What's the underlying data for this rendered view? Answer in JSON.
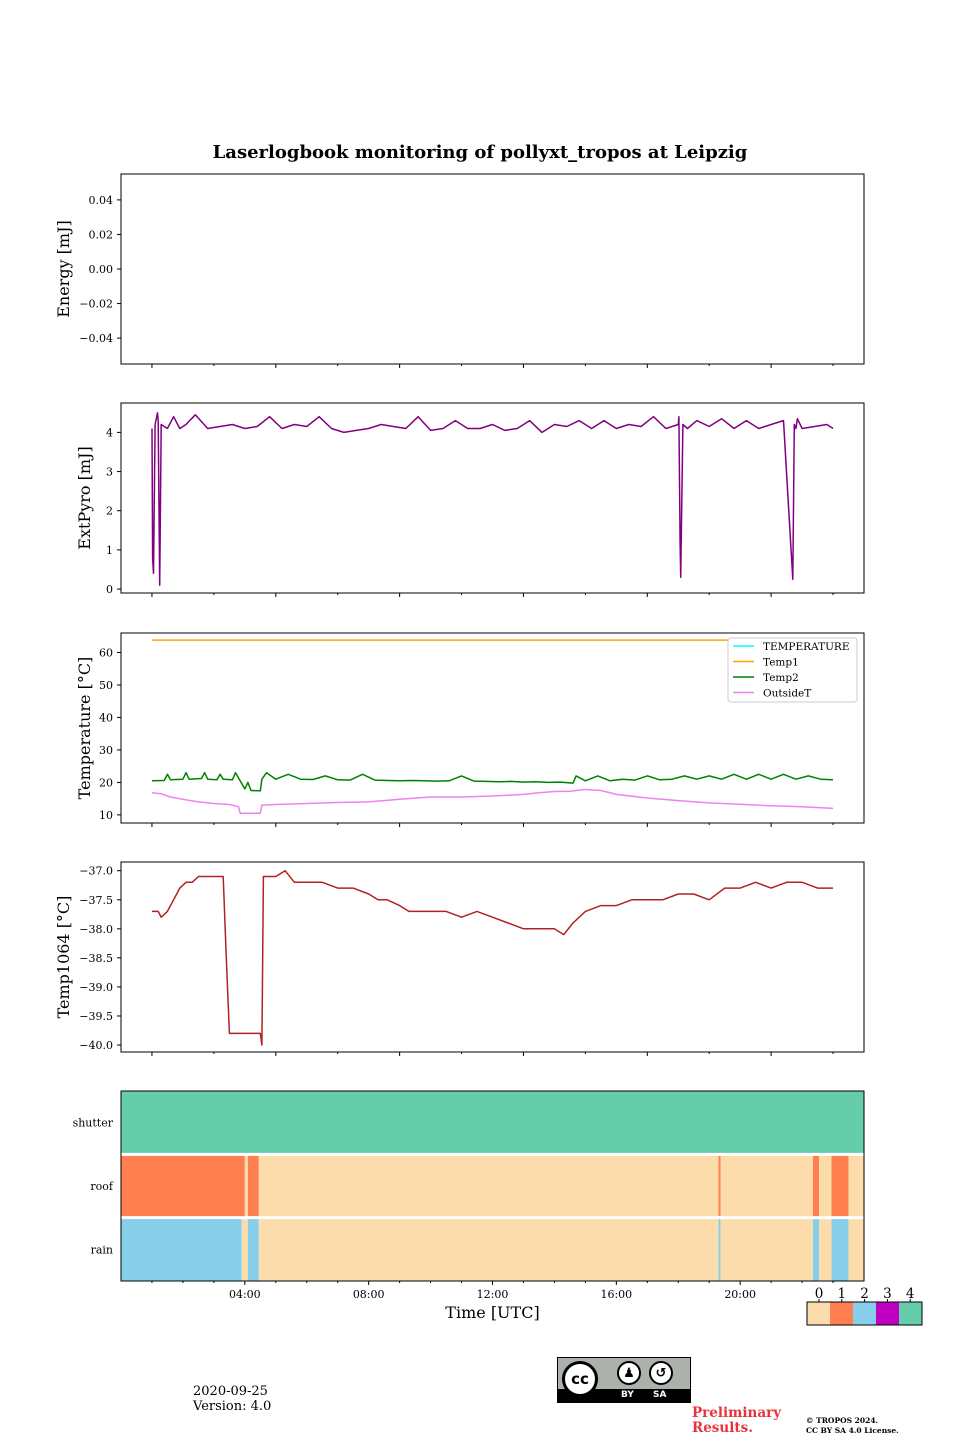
{
  "figure": {
    "title": "Laserlogbook monitoring of pollyxt_tropos at Leipzig",
    "date": "2020-09-25",
    "version": "Version: 4.0",
    "preliminary": [
      "Preliminary",
      "Results."
    ],
    "copyright": [
      "© TROPOS 2024.",
      "CC BY SA 4.0 License."
    ],
    "license_badge": {
      "by": "BY",
      "sa": "SA",
      "cc": "cc"
    }
  },
  "colors": {
    "energy": "#800080",
    "temperature": "#00ffff",
    "temp1": "#ffa500",
    "temp2": "#008000",
    "outsideT": "#ee82ee",
    "temp1064": "#b22222",
    "status": [
      "#fddcab",
      "#ff7f50",
      "#87ceeb",
      "#c000c0",
      "#66cdaa"
    ]
  },
  "chart_data": [
    {
      "type": "line",
      "id": "energy",
      "title": "",
      "ylabel": "Energy [mJ]",
      "xlim": [
        0,
        24
      ],
      "ylim": [
        -0.055,
        0.055
      ],
      "yticks": [
        0.04,
        0.02,
        0.0,
        -0.02,
        -0.04
      ],
      "ytick_labels": [
        "0.04",
        "0.02",
        "0.00",
        "−0.02",
        "−0.04"
      ],
      "series": []
    },
    {
      "type": "line",
      "id": "extpyro",
      "ylabel": "ExtPyro [mJ]",
      "xlim": [
        0,
        24
      ],
      "ylim": [
        -0.1,
        4.75
      ],
      "yticks": [
        0,
        1,
        2,
        3,
        4
      ],
      "ytick_labels": [
        "0",
        "1",
        "2",
        "3",
        "4"
      ],
      "series": [
        {
          "name": "ExtPyro",
          "color": "#800080",
          "x": [
            1.0,
            1.02,
            1.05,
            1.1,
            1.18,
            1.2,
            1.25,
            1.3,
            1.5,
            1.7,
            1.9,
            2.1,
            2.4,
            2.8,
            3.2,
            3.6,
            4.0,
            4.4,
            4.8,
            5.2,
            5.6,
            6.0,
            6.4,
            6.8,
            7.2,
            7.6,
            8.0,
            8.4,
            8.8,
            9.2,
            9.6,
            10.0,
            10.4,
            10.8,
            11.2,
            11.6,
            12.0,
            12.4,
            12.8,
            13.2,
            13.6,
            14.0,
            14.4,
            14.8,
            15.2,
            15.6,
            16.0,
            16.4,
            16.8,
            17.2,
            17.6,
            18.0,
            18.02,
            18.06,
            18.08,
            18.15,
            18.3,
            18.6,
            19.0,
            19.4,
            19.8,
            20.2,
            20.6,
            21.0,
            21.4,
            21.7,
            21.75,
            21.8,
            21.85,
            22.0,
            22.4,
            22.8,
            23.0
          ],
          "y": [
            4.1,
            0.8,
            0.4,
            4.2,
            4.5,
            4.3,
            0.1,
            4.2,
            4.1,
            4.4,
            4.1,
            4.2,
            4.45,
            4.1,
            4.15,
            4.2,
            4.1,
            4.15,
            4.4,
            4.1,
            4.2,
            4.15,
            4.4,
            4.1,
            4.0,
            4.05,
            4.1,
            4.2,
            4.15,
            4.1,
            4.4,
            4.05,
            4.1,
            4.3,
            4.1,
            4.1,
            4.2,
            4.05,
            4.1,
            4.3,
            4.0,
            4.2,
            4.15,
            4.3,
            4.1,
            4.3,
            4.1,
            4.2,
            4.15,
            4.4,
            4.1,
            4.2,
            4.4,
            1.2,
            0.3,
            4.2,
            4.1,
            4.3,
            4.15,
            4.35,
            4.1,
            4.3,
            4.1,
            4.2,
            4.3,
            0.25,
            4.2,
            4.1,
            4.35,
            4.1,
            4.15,
            4.2,
            4.1
          ]
        }
      ]
    },
    {
      "type": "line",
      "id": "temperature",
      "ylabel": "Temperature [°C]",
      "xlim": [
        0,
        24
      ],
      "ylim": [
        7.5,
        66
      ],
      "yticks": [
        10,
        20,
        30,
        40,
        50,
        60
      ],
      "ytick_labels": [
        "10",
        "20",
        "30",
        "40",
        "50",
        "60"
      ],
      "legend": {
        "placement": "top-right",
        "entries": [
          "TEMPERATURE",
          "Temp1",
          "Temp2",
          "OutsideT"
        ]
      },
      "series": [
        {
          "name": "TEMPERATURE",
          "color": "#00ffff",
          "x": [],
          "y": []
        },
        {
          "name": "Temp1",
          "color": "#ffa500",
          "x": [
            1.0,
            23.0
          ],
          "y": [
            63.8,
            63.8
          ]
        },
        {
          "name": "Temp2",
          "color": "#008000",
          "x": [
            1.0,
            1.4,
            1.5,
            1.6,
            2.0,
            2.1,
            2.2,
            2.6,
            2.7,
            2.8,
            3.1,
            3.2,
            3.3,
            3.6,
            3.7,
            4.0,
            4.1,
            4.2,
            4.5,
            4.55,
            4.7,
            5.0,
            5.4,
            5.8,
            6.2,
            6.6,
            7.0,
            7.4,
            7.8,
            8.2,
            8.6,
            9.0,
            9.4,
            9.8,
            10.2,
            10.6,
            11.0,
            11.4,
            11.8,
            12.2,
            12.6,
            13.0,
            13.4,
            13.8,
            14.2,
            14.6,
            14.7,
            15.0,
            15.4,
            15.8,
            16.2,
            16.6,
            17.0,
            17.4,
            17.8,
            18.2,
            18.6,
            19.0,
            19.4,
            19.8,
            20.2,
            20.6,
            21.0,
            21.4,
            21.8,
            22.2,
            22.6,
            23.0
          ],
          "y": [
            20.5,
            20.6,
            22.5,
            20.8,
            21.0,
            23.0,
            21.0,
            21.2,
            23.0,
            21.0,
            20.8,
            22.5,
            21.0,
            20.8,
            23.0,
            18.0,
            20.0,
            17.5,
            17.4,
            21.0,
            23.0,
            21.0,
            22.5,
            21.0,
            20.9,
            22.0,
            20.8,
            20.7,
            22.5,
            20.7,
            20.6,
            20.5,
            20.6,
            20.5,
            20.4,
            20.5,
            22.0,
            20.4,
            20.3,
            20.2,
            20.3,
            20.1,
            20.2,
            20.0,
            20.1,
            19.8,
            22.0,
            20.5,
            22.0,
            20.5,
            21.0,
            20.7,
            22.0,
            20.8,
            21.0,
            22.0,
            21.0,
            22.0,
            21.0,
            22.5,
            21.0,
            22.5,
            21.0,
            22.5,
            21.0,
            22.0,
            21.0,
            20.8
          ]
        },
        {
          "name": "OutsideT",
          "color": "#ee82ee",
          "x": [
            1.0,
            1.3,
            1.6,
            2.0,
            2.5,
            3.0,
            3.5,
            3.8,
            3.85,
            4.5,
            4.55,
            5.0,
            6.0,
            7.0,
            8.0,
            9.0,
            10.0,
            11.0,
            12.0,
            13.0,
            13.5,
            14.0,
            14.5,
            15.0,
            15.5,
            16.0,
            17.0,
            18.0,
            19.0,
            20.0,
            21.0,
            22.0,
            23.0
          ],
          "y": [
            16.8,
            16.5,
            15.5,
            14.8,
            14.0,
            13.5,
            13.2,
            12.5,
            10.5,
            10.5,
            13.0,
            13.2,
            13.5,
            13.8,
            14.0,
            14.8,
            15.5,
            15.5,
            15.8,
            16.3,
            16.8,
            17.2,
            17.3,
            17.8,
            17.5,
            16.3,
            15.2,
            14.4,
            13.7,
            13.3,
            12.8,
            12.5,
            12.0
          ]
        }
      ]
    },
    {
      "type": "line",
      "id": "temp1064",
      "ylabel": "Temp1064 [°C]",
      "xlim": [
        0,
        24
      ],
      "ylim": [
        -40.12,
        -36.85
      ],
      "yticks": [
        -37.0,
        -37.5,
        -38.0,
        -38.5,
        -39.0,
        -39.5,
        -40.0
      ],
      "ytick_labels": [
        "−37.0",
        "−37.5",
        "−38.0",
        "−38.5",
        "−39.0",
        "−39.5",
        "−40.0"
      ],
      "series": [
        {
          "name": "Temp1064",
          "color": "#b22222",
          "x": [
            1.0,
            1.2,
            1.3,
            1.5,
            1.7,
            1.8,
            1.9,
            2.1,
            2.3,
            2.5,
            2.7,
            3.3,
            3.4,
            3.5,
            3.6,
            4.5,
            4.55,
            4.6,
            5.0,
            5.3,
            5.6,
            6.0,
            6.5,
            7.0,
            7.5,
            8.0,
            8.3,
            8.6,
            9.0,
            9.3,
            9.5,
            10.0,
            10.5,
            11.0,
            11.5,
            12.0,
            12.5,
            13.0,
            13.5,
            14.0,
            14.3,
            14.6,
            15.0,
            15.5,
            16.0,
            16.5,
            17.0,
            17.5,
            18.0,
            18.5,
            19.0,
            19.5,
            20.0,
            20.5,
            21.0,
            21.5,
            22.0,
            22.5,
            23.0
          ],
          "y": [
            -37.7,
            -37.7,
            -37.8,
            -37.7,
            -37.5,
            -37.4,
            -37.3,
            -37.2,
            -37.2,
            -37.1,
            -37.1,
            -37.1,
            -38.5,
            -39.8,
            -39.8,
            -39.8,
            -40.0,
            -37.1,
            -37.1,
            -37.0,
            -37.2,
            -37.2,
            -37.2,
            -37.3,
            -37.3,
            -37.4,
            -37.5,
            -37.5,
            -37.6,
            -37.7,
            -37.7,
            -37.7,
            -37.7,
            -37.8,
            -37.7,
            -37.8,
            -37.9,
            -38.0,
            -38.0,
            -38.0,
            -38.1,
            -37.9,
            -37.7,
            -37.6,
            -37.6,
            -37.5,
            -37.5,
            -37.5,
            -37.4,
            -37.4,
            -37.5,
            -37.3,
            -37.3,
            -37.2,
            -37.3,
            -37.2,
            -37.2,
            -37.3,
            -37.3
          ]
        }
      ]
    },
    {
      "type": "heatmap",
      "id": "status",
      "title": "",
      "xlabel": "Time [UTC]",
      "xlim": [
        0,
        24
      ],
      "xticks": [
        4,
        8,
        12,
        16,
        20
      ],
      "xtick_labels": [
        "04:00",
        "08:00",
        "12:00",
        "16:00",
        "20:00"
      ],
      "rows": [
        "shutter",
        "roof",
        "rain"
      ],
      "colorbar": {
        "ticks": [
          "0",
          "1",
          "2",
          "3",
          "4"
        ]
      },
      "segments": {
        "shutter": [
          {
            "start": 0,
            "end": 24,
            "value": 4
          }
        ],
        "roof": [
          {
            "start": 0,
            "end": 4.0,
            "value": 1
          },
          {
            "start": 4.0,
            "end": 4.1,
            "value": 0
          },
          {
            "start": 4.1,
            "end": 4.45,
            "value": 1
          },
          {
            "start": 4.45,
            "end": 19.3,
            "value": 0
          },
          {
            "start": 19.3,
            "end": 19.37,
            "value": 1
          },
          {
            "start": 19.37,
            "end": 22.35,
            "value": 0
          },
          {
            "start": 22.35,
            "end": 22.55,
            "value": 1
          },
          {
            "start": 22.55,
            "end": 22.95,
            "value": 0
          },
          {
            "start": 22.95,
            "end": 23.5,
            "value": 1
          },
          {
            "start": 23.5,
            "end": 24,
            "value": 0
          }
        ],
        "rain": [
          {
            "start": 0,
            "end": 3.9,
            "value": 2
          },
          {
            "start": 3.9,
            "end": 4.1,
            "value": 0
          },
          {
            "start": 4.1,
            "end": 4.45,
            "value": 2
          },
          {
            "start": 4.45,
            "end": 19.3,
            "value": 0
          },
          {
            "start": 19.3,
            "end": 19.37,
            "value": 2
          },
          {
            "start": 19.37,
            "end": 22.35,
            "value": 0
          },
          {
            "start": 22.35,
            "end": 22.55,
            "value": 2
          },
          {
            "start": 22.55,
            "end": 22.95,
            "value": 0
          },
          {
            "start": 22.95,
            "end": 23.5,
            "value": 2
          },
          {
            "start": 23.5,
            "end": 24,
            "value": 0
          }
        ]
      }
    }
  ]
}
